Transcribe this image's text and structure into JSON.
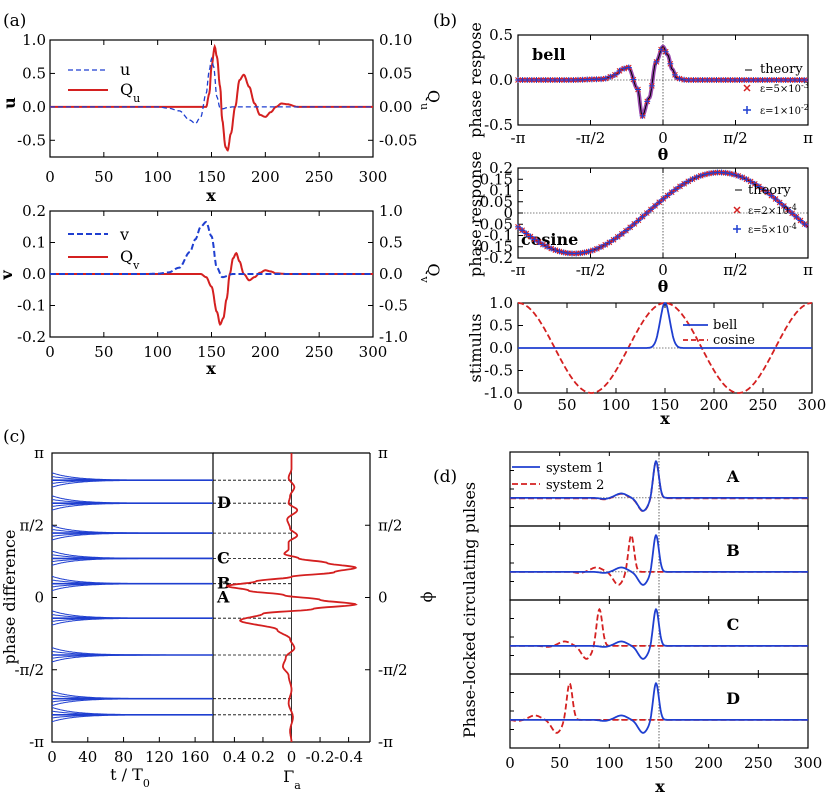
{
  "colors": {
    "blue": "#1f3fd0",
    "red": "#d42020",
    "purple": "#8a2aa0",
    "black": "#000000"
  },
  "chart_data": [
    {
      "id": "a1",
      "panel_label": "(a)",
      "type": "line",
      "xlabel": "x",
      "ylabel_left": "u",
      "ylabel_right": "Q",
      "ylabel_right_sub": "u",
      "xlim": [
        0,
        300
      ],
      "ylim_left": [
        -0.75,
        1.0
      ],
      "ylim_right": [
        -0.075,
        0.1
      ],
      "xticks": [
        "0",
        "50",
        "100",
        "150",
        "200",
        "250",
        "300"
      ],
      "yticks_left": [
        "-0.5",
        "0.0",
        "0.5",
        "1.0"
      ],
      "yticks_right": [
        "-0.05",
        "0.00",
        "0.05",
        "0.10"
      ],
      "series": [
        {
          "name": "u",
          "axis": "left",
          "style": "dashed",
          "color": "#1f3fd0",
          "x": [
            0,
            80,
            100,
            110,
            120,
            130,
            135,
            140,
            145,
            148,
            150,
            152,
            155,
            158,
            160,
            165,
            170,
            180,
            200,
            230,
            260,
            300
          ],
          "y": [
            0,
            0,
            0,
            -0.02,
            -0.06,
            -0.2,
            -0.25,
            -0.15,
            0.2,
            0.55,
            0.72,
            0.6,
            0.15,
            -0.02,
            -0.03,
            -0.01,
            0,
            0,
            0,
            0,
            0,
            0
          ]
        },
        {
          "name": "Q",
          "name_sub": "u",
          "axis": "right",
          "style": "solid",
          "color": "#d42020",
          "x": [
            0,
            80,
            100,
            110,
            120,
            130,
            135,
            140,
            145,
            148,
            150,
            153,
            155,
            158,
            160,
            163,
            165,
            168,
            172,
            176,
            180,
            185,
            190,
            195,
            200,
            205,
            210,
            215,
            220,
            230,
            240,
            260,
            300
          ],
          "y": [
            0,
            0,
            0,
            0,
            0,
            0,
            0,
            0,
            0,
            0.02,
            0.06,
            0.09,
            0.075,
            0.03,
            -0.02,
            -0.06,
            -0.065,
            -0.04,
            0,
            0.04,
            0.048,
            0.03,
            0.005,
            -0.012,
            -0.015,
            -0.008,
            0,
            0.005,
            0.004,
            0,
            0,
            0,
            0
          ]
        }
      ]
    },
    {
      "id": "a2",
      "type": "line",
      "xlabel": "x",
      "ylabel_left": "v",
      "ylabel_right": "Q",
      "ylabel_right_sub": "v",
      "xlim": [
        0,
        300
      ],
      "ylim_left": [
        -0.2,
        0.2
      ],
      "ylim_right": [
        -1.0,
        1.0
      ],
      "xticks": [
        "0",
        "50",
        "100",
        "150",
        "200",
        "250",
        "300"
      ],
      "yticks_left": [
        "-0.2",
        "-0.1",
        "0.0",
        "0.1",
        "0.2"
      ],
      "yticks_right": [
        "-1.0",
        "-0.5",
        "0.0",
        "0.5",
        "1.0"
      ],
      "series": [
        {
          "name": "v",
          "axis": "left",
          "style": "dashed",
          "color": "#1f3fd0",
          "x": [
            0,
            90,
            100,
            110,
            120,
            130,
            135,
            140,
            145,
            150,
            155,
            160,
            170,
            200,
            300
          ],
          "y": [
            0,
            0,
            0.001,
            0.005,
            0.02,
            0.07,
            0.11,
            0.15,
            0.165,
            0.12,
            0.02,
            -0.01,
            0,
            0,
            0
          ]
        },
        {
          "name": "Q",
          "name_sub": "v",
          "axis": "right",
          "style": "solid",
          "color": "#d42020",
          "x": [
            0,
            100,
            140,
            145,
            150,
            155,
            158,
            161,
            164,
            167,
            170,
            173,
            176,
            180,
            185,
            190,
            195,
            200,
            205,
            210,
            220,
            300
          ],
          "y": [
            0,
            0,
            0,
            -0.05,
            -0.2,
            -0.6,
            -0.8,
            -0.7,
            -0.4,
            0,
            0.25,
            0.33,
            0.2,
            0,
            -0.1,
            -0.05,
            0.02,
            0.06,
            0.04,
            0.01,
            0,
            0
          ]
        }
      ]
    },
    {
      "id": "b1",
      "panel_label": "(b)",
      "type": "scatter",
      "xlabel": "θ",
      "ylabel": "phase respose",
      "inner_label": "bell",
      "xlim": [
        -3.1416,
        3.1416
      ],
      "ylim": [
        -0.5,
        0.5
      ],
      "xticks": [
        "-π",
        "-π/2",
        "0",
        "π/2",
        "π"
      ],
      "yticks": [
        "-0.5",
        "0.0",
        "0.5"
      ],
      "legend": [
        "theory",
        "ε=5×10",
        "-3",
        "ε=1×10",
        "-2"
      ],
      "series": [
        {
          "name": "theory",
          "style": "solid",
          "color": "#000000",
          "x": [
            -3.14,
            -2,
            -1.3,
            -1.1,
            -1.0,
            -0.9,
            -0.75,
            -0.55,
            -0.45,
            -0.3,
            -0.15,
            0,
            0.1,
            0.2,
            0.3,
            0.5,
            1.0,
            3.14
          ],
          "y": [
            0,
            0,
            0.01,
            0.04,
            0.07,
            0.12,
            0.14,
            -0.1,
            -0.4,
            -0.2,
            0.2,
            0.37,
            0.28,
            0.12,
            0.02,
            0,
            0,
            0
          ]
        }
      ]
    },
    {
      "id": "b2",
      "type": "scatter",
      "xlabel": "θ",
      "ylabel": "phase response",
      "inner_label": "cosine",
      "xlim": [
        -3.1416,
        3.1416
      ],
      "ylim": [
        -0.2,
        0.2
      ],
      "xticks": [
        "-π",
        "-π/2",
        "0",
        "π/2",
        "π"
      ],
      "yticks": [
        "-0.2",
        "-0.15",
        "-0.1",
        "-0.05",
        "0",
        "0.05",
        "0.1",
        "0.15",
        "0.2"
      ],
      "legend": [
        "theory",
        "ε=2×10",
        "-4",
        "ε=5×10",
        "-4"
      ],
      "amplitude": 0.18,
      "phase_shift": 0.35
    },
    {
      "id": "b3",
      "type": "line",
      "xlabel": "x",
      "ylabel": "stimulus",
      "xlim": [
        0,
        300
      ],
      "ylim": [
        -1.0,
        1.0
      ],
      "xticks": [
        "0",
        "50",
        "100",
        "150",
        "200",
        "250",
        "300"
      ],
      "yticks": [
        "-1.0",
        "-0.5",
        "0.0",
        "0.5",
        "1.0"
      ],
      "series": [
        {
          "name": "bell",
          "style": "solid",
          "color": "#1f3fd0",
          "center": 150,
          "width": 7
        },
        {
          "name": "cosine",
          "style": "dashed",
          "color": "#d42020",
          "period": 150
        }
      ]
    },
    {
      "id": "c1",
      "panel_label": "(c)",
      "type": "line",
      "xlabel": "t / T",
      "xlabel_sub": "0",
      "ylabel": "phase difference",
      "xlim": [
        0,
        180
      ],
      "ylim": [
        -3.1416,
        3.1416
      ],
      "xticks": [
        "0",
        "40",
        "80",
        "120",
        "160"
      ],
      "yticks": [
        "-π",
        "-π/2",
        "0",
        "π/2",
        "π"
      ],
      "fixed_points": [
        -2.55,
        -2.2,
        -1.25,
        -0.45,
        0.3,
        0.85,
        1.4,
        2.05,
        2.55
      ],
      "labels": [
        {
          "text": "A",
          "phi": 0.0
        },
        {
          "text": "B",
          "phi": 0.3
        },
        {
          "text": "C",
          "phi": 0.85
        },
        {
          "text": "D",
          "phi": 2.05
        }
      ]
    },
    {
      "id": "c2",
      "type": "line",
      "xlabel": "Γ",
      "xlabel_sub": "a",
      "ylabel": "ϕ",
      "xlim": [
        0.6,
        -0.6
      ],
      "ylim": [
        -3.1416,
        3.1416
      ],
      "xticks": [
        "0.4",
        "0.2",
        "0",
        "-0.2",
        "-0.4"
      ],
      "yticks": [
        "-π",
        "-π/2",
        "0",
        "π/2",
        "π"
      ],
      "series": [
        {
          "name": "Γa",
          "color": "#d42020",
          "phi": [
            -3.14,
            -2.9,
            -2.6,
            -2.3,
            -2.0,
            -1.7,
            -1.5,
            -1.3,
            -1.1,
            -0.9,
            -0.7,
            -0.5,
            -0.35,
            -0.25,
            -0.15,
            -0.05,
            0.05,
            0.15,
            0.25,
            0.35,
            0.45,
            0.55,
            0.65,
            0.75,
            0.85,
            0.95,
            1.05,
            1.2,
            1.35,
            1.5,
            1.7,
            1.9,
            2.05,
            2.2,
            2.4,
            2.6,
            2.8,
            3.14
          ],
          "g": [
            0,
            0.01,
            -0.01,
            0.02,
            0,
            0.02,
            0.06,
            0.04,
            -0.02,
            0.01,
            0.1,
            0.36,
            0.2,
            -0.15,
            -0.45,
            -0.2,
            0.05,
            0.3,
            0.45,
            0.25,
            0,
            -0.3,
            -0.45,
            -0.25,
            -0.05,
            0.05,
            0.02,
            0.02,
            -0.04,
            0.01,
            0.03,
            -0.04,
            0.02,
            0.01,
            -0.02,
            0.02,
            0,
            0
          ]
        }
      ]
    },
    {
      "id": "d",
      "panel_label": "(d)",
      "type": "line",
      "xlabel": "x",
      "ylabel": "Phase-locked circulating pulses",
      "xlim": [
        0,
        300
      ],
      "xticks": [
        "0",
        "50",
        "100",
        "150",
        "200",
        "250",
        "300"
      ],
      "legend": [
        "system 1",
        "system 2"
      ],
      "rows": [
        {
          "label": "A",
          "shift2": 0
        },
        {
          "label": "B",
          "shift2": -25
        },
        {
          "label": "C",
          "shift2": -57
        },
        {
          "label": "D",
          "shift2": -87
        }
      ]
    }
  ]
}
